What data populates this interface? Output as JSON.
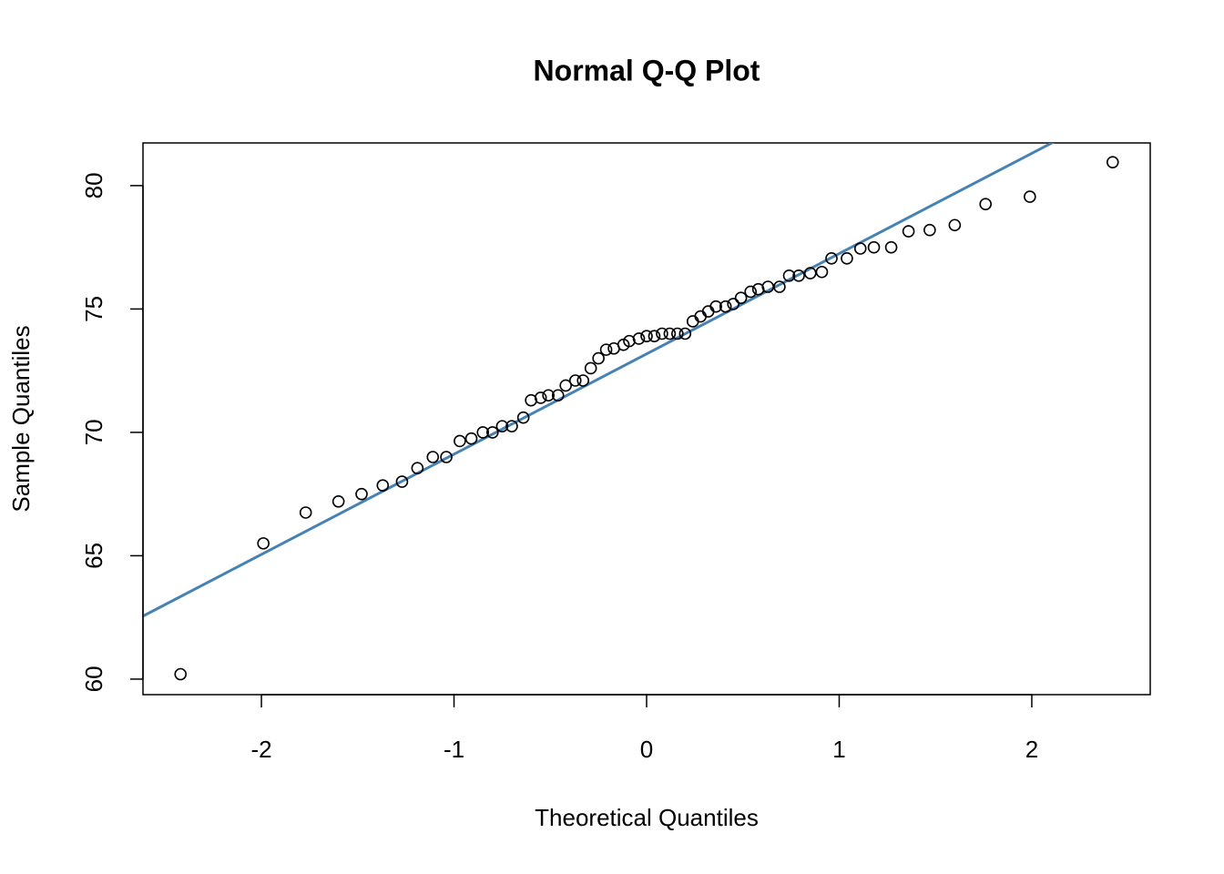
{
  "chart_data": {
    "type": "scatter",
    "title": "Normal Q-Q Plot",
    "xlabel": "Theoretical Quantiles",
    "ylabel": "Sample Quantiles",
    "x": [
      -2.42,
      -1.99,
      -1.77,
      -1.6,
      -1.48,
      -1.37,
      -1.27,
      -1.19,
      -1.11,
      -1.04,
      -0.97,
      -0.91,
      -0.85,
      -0.8,
      -0.75,
      -0.7,
      -0.64,
      -0.6,
      -0.55,
      -0.51,
      -0.46,
      -0.42,
      -0.37,
      -0.33,
      -0.29,
      -0.25,
      -0.21,
      -0.17,
      -0.12,
      -0.09,
      -0.04,
      0,
      0.04,
      0.08,
      0.12,
      0.16,
      0.2,
      0.24,
      0.28,
      0.32,
      0.36,
      0.41,
      0.45,
      0.49,
      0.54,
      0.58,
      0.63,
      0.69,
      0.74,
      0.79,
      0.85,
      0.91,
      0.96,
      1.04,
      1.11,
      1.18,
      1.27,
      1.36,
      1.47,
      1.6,
      1.76,
      1.99,
      2.42
    ],
    "y": [
      60.2,
      65.5,
      66.75,
      67.2,
      67.5,
      67.85,
      68.0,
      68.55,
      69.0,
      69.0,
      69.65,
      69.75,
      70.0,
      70.0,
      70.25,
      70.25,
      70.6,
      71.3,
      71.4,
      71.5,
      71.5,
      71.9,
      72.1,
      72.1,
      72.6,
      73.0,
      73.35,
      73.4,
      73.55,
      73.7,
      73.8,
      73.9,
      73.9,
      74.0,
      74.0,
      74.0,
      74.0,
      74.5,
      74.7,
      74.9,
      75.1,
      75.1,
      75.2,
      75.45,
      75.7,
      75.8,
      75.9,
      75.9,
      76.35,
      76.35,
      76.45,
      76.5,
      77.05,
      77.05,
      77.45,
      77.5,
      77.5,
      78.15,
      78.2,
      78.4,
      79.25,
      79.55,
      80.95
    ],
    "color": "#000000",
    "line": {
      "intercept": 73.18,
      "slope": 4.064,
      "color": "#4682b4"
    },
    "xlim": [
      -2.615,
      2.615
    ],
    "xticks": [
      -2,
      -1,
      0,
      1,
      2
    ],
    "ylim": [
      59.37,
      81.73
    ],
    "yticks": [
      60,
      65,
      70,
      75,
      80
    ]
  }
}
